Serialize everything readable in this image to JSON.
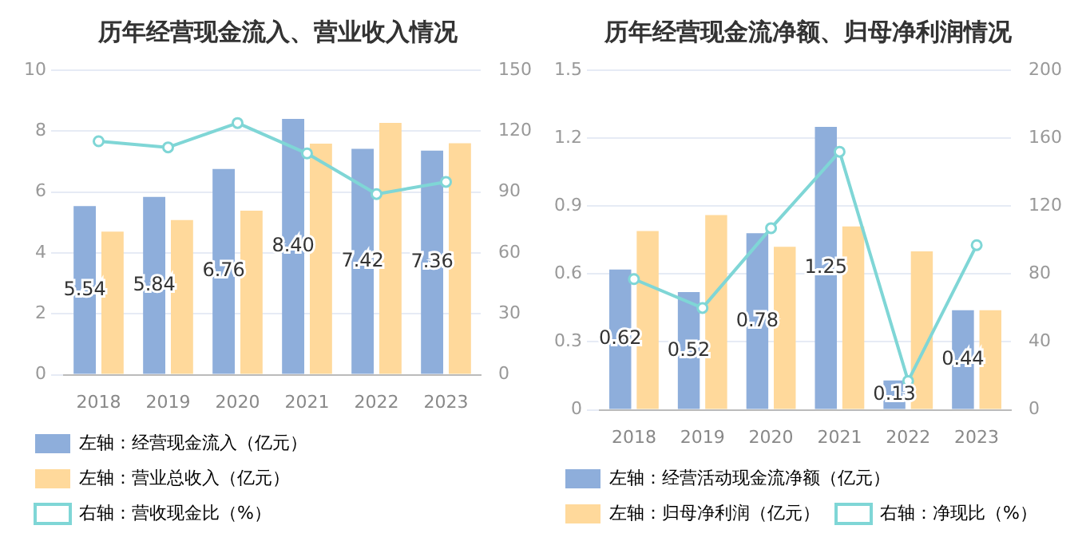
{
  "chart_data": [
    {
      "type": "bar",
      "title": "历年经营现金流入、营业收入情况",
      "categories": [
        "2018",
        "2019",
        "2020",
        "2021",
        "2022",
        "2023"
      ],
      "ylim": [
        0,
        10
      ],
      "yticks": [
        0,
        2,
        4,
        6,
        8,
        10
      ],
      "y2lim": [
        0,
        150
      ],
      "y2ticks": [
        0,
        30,
        60,
        90,
        120,
        150
      ],
      "grid": "y",
      "legend": "bottom",
      "series": [
        {
          "name": "左轴：经营现金流入（亿元）",
          "color": "#8eaedb",
          "values": [
            5.54,
            5.84,
            6.76,
            8.4,
            7.42,
            7.36
          ],
          "value_labels": [
            "5.54",
            "5.84",
            "6.76",
            "8.40",
            "7.42",
            "7.36"
          ]
        },
        {
          "name": "左轴：营业总收入（亿元）",
          "color": "#ffd99b",
          "values": [
            4.7,
            5.08,
            5.39,
            7.59,
            8.27,
            7.6
          ]
        },
        {
          "name": "右轴：营收现金比（%）",
          "type": "line",
          "axis": "y2",
          "color": "#7fd6d6",
          "marker": "circle",
          "values": [
            115,
            112,
            124,
            109,
            89,
            95
          ]
        }
      ]
    },
    {
      "type": "bar",
      "title": "历年经营现金流净额、归母净利润情况",
      "categories": [
        "2018",
        "2019",
        "2020",
        "2021",
        "2022",
        "2023"
      ],
      "ylim": [
        0,
        1.5
      ],
      "yticks": [
        0,
        0.3,
        0.6,
        0.9,
        1.2,
        1.5
      ],
      "y2lim": [
        0,
        200
      ],
      "y2ticks": [
        0,
        40,
        80,
        120,
        160,
        200
      ],
      "grid": "y",
      "legend": "bottom",
      "series": [
        {
          "name": "左轴：经营活动现金流净额（亿元）",
          "color": "#8eaedb",
          "values": [
            0.62,
            0.52,
            0.78,
            1.25,
            0.13,
            0.44
          ],
          "value_labels": [
            "0.62",
            "0.52",
            "0.78",
            "1.25",
            "0.13",
            "0.44"
          ]
        },
        {
          "name": "左轴：归母净利润（亿元）",
          "color": "#ffd99b",
          "values": [
            0.79,
            0.86,
            0.72,
            0.81,
            0.7,
            0.44
          ]
        },
        {
          "name": "右轴：净现比（%）",
          "type": "line",
          "axis": "y2",
          "color": "#7fd6d6",
          "marker": "circle",
          "values": [
            77,
            60,
            107,
            152,
            17,
            97
          ]
        }
      ]
    }
  ]
}
